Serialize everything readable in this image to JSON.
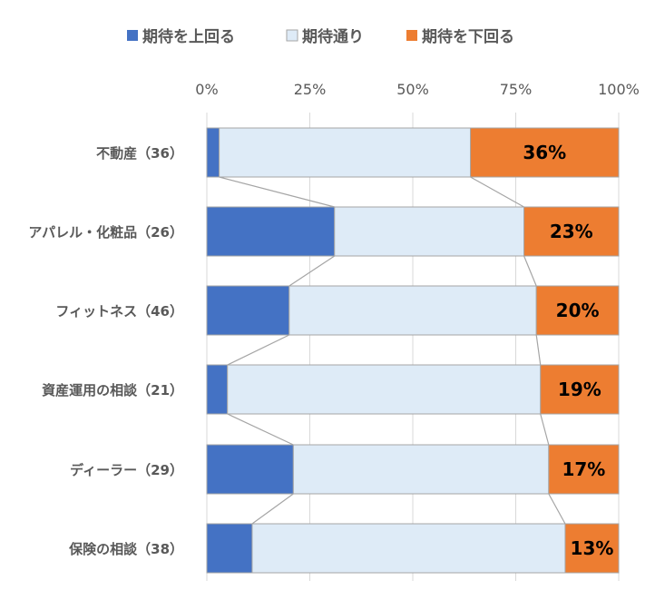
{
  "chart_data": {
    "type": "bar",
    "orientation": "horizontal",
    "stacked": "100%",
    "categories": [
      "不動産（36）",
      "アパレル・化粧品（26）",
      "フィットネス（46）",
      "資産運用の相談（21）",
      "ディーラー（29）",
      "保険の相談（38）"
    ],
    "series": [
      {
        "name": "期待を上回る",
        "color": "#4472C4",
        "values": [
          3,
          31,
          20,
          5,
          21,
          11
        ]
      },
      {
        "name": "期待通り",
        "color": "#DEEBF7",
        "values": [
          61,
          46,
          60,
          76,
          62,
          76
        ]
      },
      {
        "name": "期待を下回る",
        "color": "#ED7D31",
        "values": [
          36,
          23,
          20,
          19,
          17,
          13
        ]
      }
    ],
    "data_labels": [
      "36%",
      "23%",
      "20%",
      "19%",
      "17%",
      "13%"
    ],
    "x_ticks": [
      "0%",
      "25%",
      "50%",
      "75%",
      "100%"
    ],
    "xlim": [
      0,
      100
    ],
    "grid": true,
    "legend_position": "top",
    "series_lines": true
  }
}
